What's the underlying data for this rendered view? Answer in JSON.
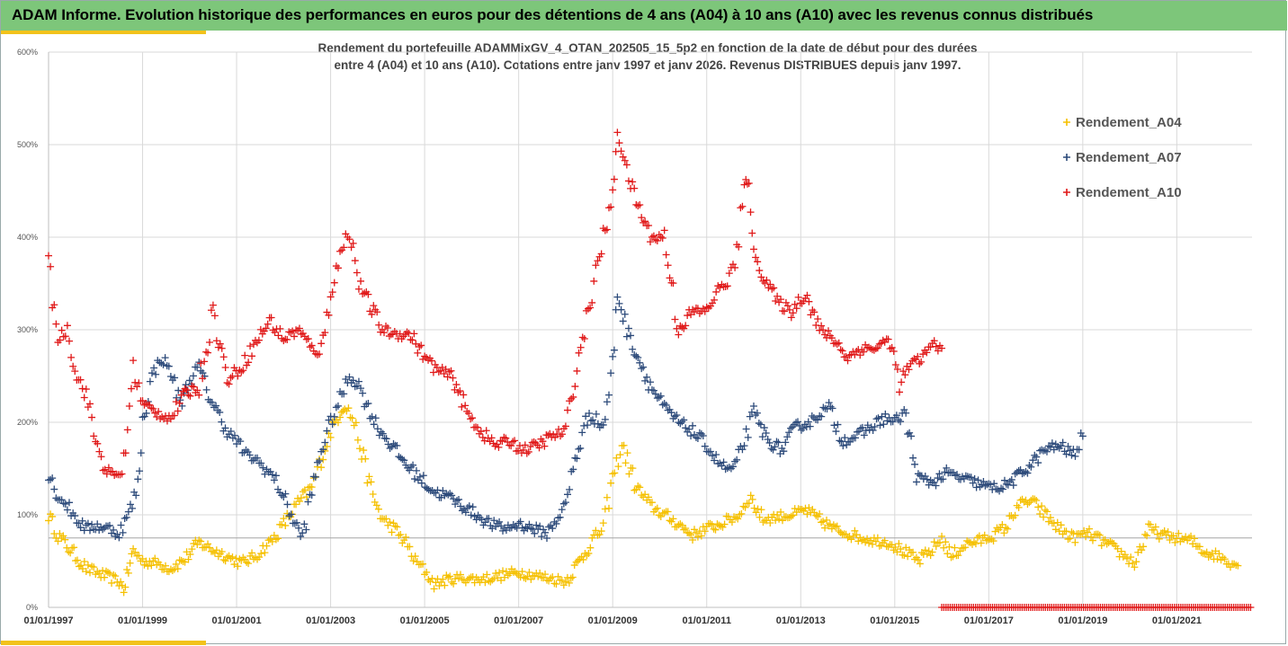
{
  "header": {
    "title": "ADAM Informe. Evolution historique des performances en euros pour des détentions de 4 ans (A04) à 10 ans (A10) avec les revenus connus distribués"
  },
  "chart_data": {
    "type": "scatter",
    "title_line1": "Rendement du portefeuille ADAMMixGV_4_OTAN_202505_15_5p2  en fonction de la date de début pour des durées",
    "title_line2": "entre 4 (A04) et 10 ans (A10). Cotations entre janv 1997 et janv 2026. Revenus DISTRIBUES depuis janv 1997.",
    "ylim": [
      0,
      600
    ],
    "y_ticks": [
      "0%",
      "100%",
      "200%",
      "300%",
      "400%",
      "500%",
      "600%"
    ],
    "x_range": [
      1997.0,
      2022.6
    ],
    "x_ticks": [
      {
        "label": "01/01/1997",
        "year": 1997
      },
      {
        "label": "01/01/1999",
        "year": 1999
      },
      {
        "label": "01/01/2001",
        "year": 2001
      },
      {
        "label": "01/01/2003",
        "year": 2003
      },
      {
        "label": "01/01/2005",
        "year": 2005
      },
      {
        "label": "01/01/2007",
        "year": 2007
      },
      {
        "label": "01/01/2009",
        "year": 2009
      },
      {
        "label": "01/01/2011",
        "year": 2011
      },
      {
        "label": "01/01/2013",
        "year": 2013
      },
      {
        "label": "01/01/2015",
        "year": 2015
      },
      {
        "label": "01/01/2017",
        "year": 2017
      },
      {
        "label": "01/01/2019",
        "year": 2019
      },
      {
        "label": "01/01/2021",
        "year": 2021
      }
    ],
    "reference_line_y": 75,
    "grid": "horizontal",
    "legend_position": "top-right",
    "series": [
      {
        "name": "Rendement_A04",
        "color": "#f5c000",
        "x": [
          1997.0,
          1997.2,
          1997.5,
          1997.8,
          1998.0,
          1998.3,
          1998.5,
          1998.6,
          1998.7,
          1998.8,
          1999.0,
          1999.3,
          1999.6,
          1999.9,
          2000.2,
          2000.5,
          2000.8,
          2001.1,
          2001.4,
          2001.6,
          2001.8,
          2002.0,
          2002.3,
          2002.6,
          2002.8,
          2003.0,
          2003.2,
          2003.3,
          2003.5,
          2003.7,
          2003.9,
          2004.1,
          2004.3,
          2004.6,
          2004.8,
          2005.0,
          2005.2,
          2005.5,
          2005.8,
          2006.1,
          2006.4,
          2006.7,
          2007.0,
          2007.3,
          2007.6,
          2007.8,
          2008.0,
          2008.3,
          2008.6,
          2008.8,
          2009.0,
          2009.2,
          2009.5,
          2009.8,
          2010.1,
          2010.4,
          2010.7,
          2011.0,
          2011.3,
          2011.5,
          2011.7,
          2011.9,
          2012.2,
          2012.5,
          2012.8,
          2013.1,
          2013.4,
          2013.7,
          2014.0,
          2014.3,
          2014.6,
          2014.9,
          2015.2,
          2015.5,
          2015.8,
          2016.0,
          2016.2,
          2016.5,
          2016.8,
          2017.1,
          2017.4,
          2017.6,
          2017.9,
          2018.2,
          2018.5,
          2018.8,
          2019.1,
          2019.4,
          2019.7,
          2019.9,
          2020.1,
          2020.4,
          2020.7,
          2021.0,
          2021.3,
          2021.6,
          2021.9,
          2022.1,
          2022.3
        ],
        "y": [
          100,
          78,
          60,
          42,
          38,
          32,
          28,
          20,
          40,
          62,
          50,
          48,
          42,
          52,
          70,
          62,
          55,
          48,
          55,
          65,
          75,
          90,
          112,
          130,
          160,
          190,
          210,
          220,
          200,
          160,
          120,
          95,
          88,
          70,
          50,
          40,
          25,
          30,
          32,
          30,
          32,
          35,
          38,
          35,
          32,
          30,
          28,
          50,
          75,
          85,
          140,
          175,
          130,
          110,
          100,
          90,
          78,
          85,
          90,
          95,
          100,
          120,
          95,
          98,
          100,
          105,
          95,
          85,
          80,
          75,
          72,
          70,
          60,
          50,
          62,
          75,
          55,
          68,
          72,
          78,
          88,
          110,
          115,
          100,
          85,
          75,
          80,
          72,
          62,
          55,
          48,
          85,
          78,
          75,
          72,
          60,
          55,
          50,
          45
        ]
      },
      {
        "name": "Rendement_A07",
        "color": "#2c4a7a",
        "x": [
          1997.0,
          1997.2,
          1997.4,
          1997.6,
          1997.8,
          1998.0,
          1998.3,
          1998.5,
          1998.7,
          1998.9,
          1999.0,
          1999.2,
          1999.4,
          1999.6,
          1999.8,
          2000.0,
          2000.2,
          2000.4,
          2000.6,
          2000.8,
          2001.0,
          2001.2,
          2001.4,
          2001.6,
          2001.8,
          2002.0,
          2002.2,
          2002.4,
          2002.6,
          2002.8,
          2003.0,
          2003.2,
          2003.4,
          2003.6,
          2003.8,
          2004.0,
          2004.3,
          2004.6,
          2004.9,
          2005.2,
          2005.5,
          2005.8,
          2006.1,
          2006.4,
          2006.7,
          2007.0,
          2007.3,
          2007.6,
          2007.8,
          2008.0,
          2008.2,
          2008.5,
          2008.8,
          2009.0,
          2009.1,
          2009.3,
          2009.5,
          2009.8,
          2010.1,
          2010.4,
          2010.7,
          2011.0,
          2011.2,
          2011.4,
          2011.6,
          2011.8,
          2012.0,
          2012.3,
          2012.6,
          2012.9,
          2013.2,
          2013.4,
          2013.6,
          2013.9,
          2014.2,
          2014.5,
          2014.8,
          2015.0,
          2015.2,
          2015.5,
          2015.8,
          2016.1,
          2016.4,
          2016.7,
          2017.0,
          2017.3,
          2017.6,
          2017.9,
          2018.2,
          2018.5,
          2018.8,
          2019.0
        ],
        "y": [
          145,
          120,
          110,
          95,
          85,
          88,
          85,
          80,
          100,
          130,
          200,
          250,
          270,
          255,
          220,
          245,
          260,
          230,
          210,
          190,
          180,
          165,
          160,
          150,
          140,
          120,
          95,
          75,
          125,
          170,
          200,
          225,
          250,
          240,
          215,
          195,
          175,
          155,
          140,
          125,
          120,
          110,
          100,
          90,
          85,
          90,
          85,
          80,
          95,
          110,
          160,
          210,
          195,
          260,
          340,
          300,
          275,
          240,
          215,
          200,
          190,
          175,
          160,
          150,
          150,
          180,
          210,
          180,
          170,
          195,
          200,
          210,
          215,
          180,
          185,
          195,
          205,
          200,
          210,
          140,
          135,
          145,
          140,
          135,
          130,
          130,
          140,
          155,
          170,
          175,
          165,
          185
        ]
      },
      {
        "name": "Rendement_A10",
        "color": "#e01818",
        "x": [
          1997.0,
          1997.2,
          1997.4,
          1997.6,
          1997.8,
          1998.0,
          1998.2,
          1998.4,
          1998.6,
          1998.8,
          1999.0,
          1999.3,
          1999.6,
          1999.9,
          2000.2,
          2000.5,
          2000.8,
          2001.1,
          2001.4,
          2001.7,
          2002.0,
          2002.3,
          2002.6,
          2002.8,
          2003.0,
          2003.2,
          2003.4,
          2003.6,
          2003.8,
          2004.1,
          2004.4,
          2004.7,
          2005.0,
          2005.3,
          2005.6,
          2005.9,
          2006.2,
          2006.5,
          2006.8,
          2007.1,
          2007.4,
          2007.7,
          2008.0,
          2008.2,
          2008.4,
          2008.6,
          2008.8,
          2009.0,
          2009.1,
          2009.3,
          2009.5,
          2009.8,
          2010.1,
          2010.4,
          2010.7,
          2011.0,
          2011.2,
          2011.4,
          2011.6,
          2011.8,
          2011.9,
          2012.0,
          2012.2,
          2012.5,
          2012.8,
          2013.1,
          2013.4,
          2013.7,
          2014.0,
          2014.3,
          2014.6,
          2014.9,
          2015.1,
          2015.3,
          2015.6,
          2015.8,
          2016.0
        ],
        "y": [
          370,
          290,
          300,
          250,
          230,
          180,
          150,
          140,
          150,
          260,
          220,
          210,
          205,
          230,
          240,
          320,
          245,
          260,
          285,
          310,
          290,
          300,
          280,
          275,
          340,
          380,
          410,
          350,
          330,
          300,
          295,
          295,
          270,
          255,
          250,
          210,
          190,
          175,
          180,
          170,
          175,
          185,
          190,
          250,
          300,
          350,
          400,
          440,
          520,
          470,
          440,
          400,
          400,
          300,
          320,
          320,
          340,
          350,
          370,
          450,
          470,
          380,
          360,
          330,
          320,
          340,
          300,
          290,
          270,
          280,
          280,
          290,
          240,
          260,
          270,
          285,
          280
        ]
      }
    ],
    "zero_marks": {
      "color": "#e01818",
      "y": 0,
      "x_start": 2016.0,
      "x_end": 2022.6
    }
  }
}
